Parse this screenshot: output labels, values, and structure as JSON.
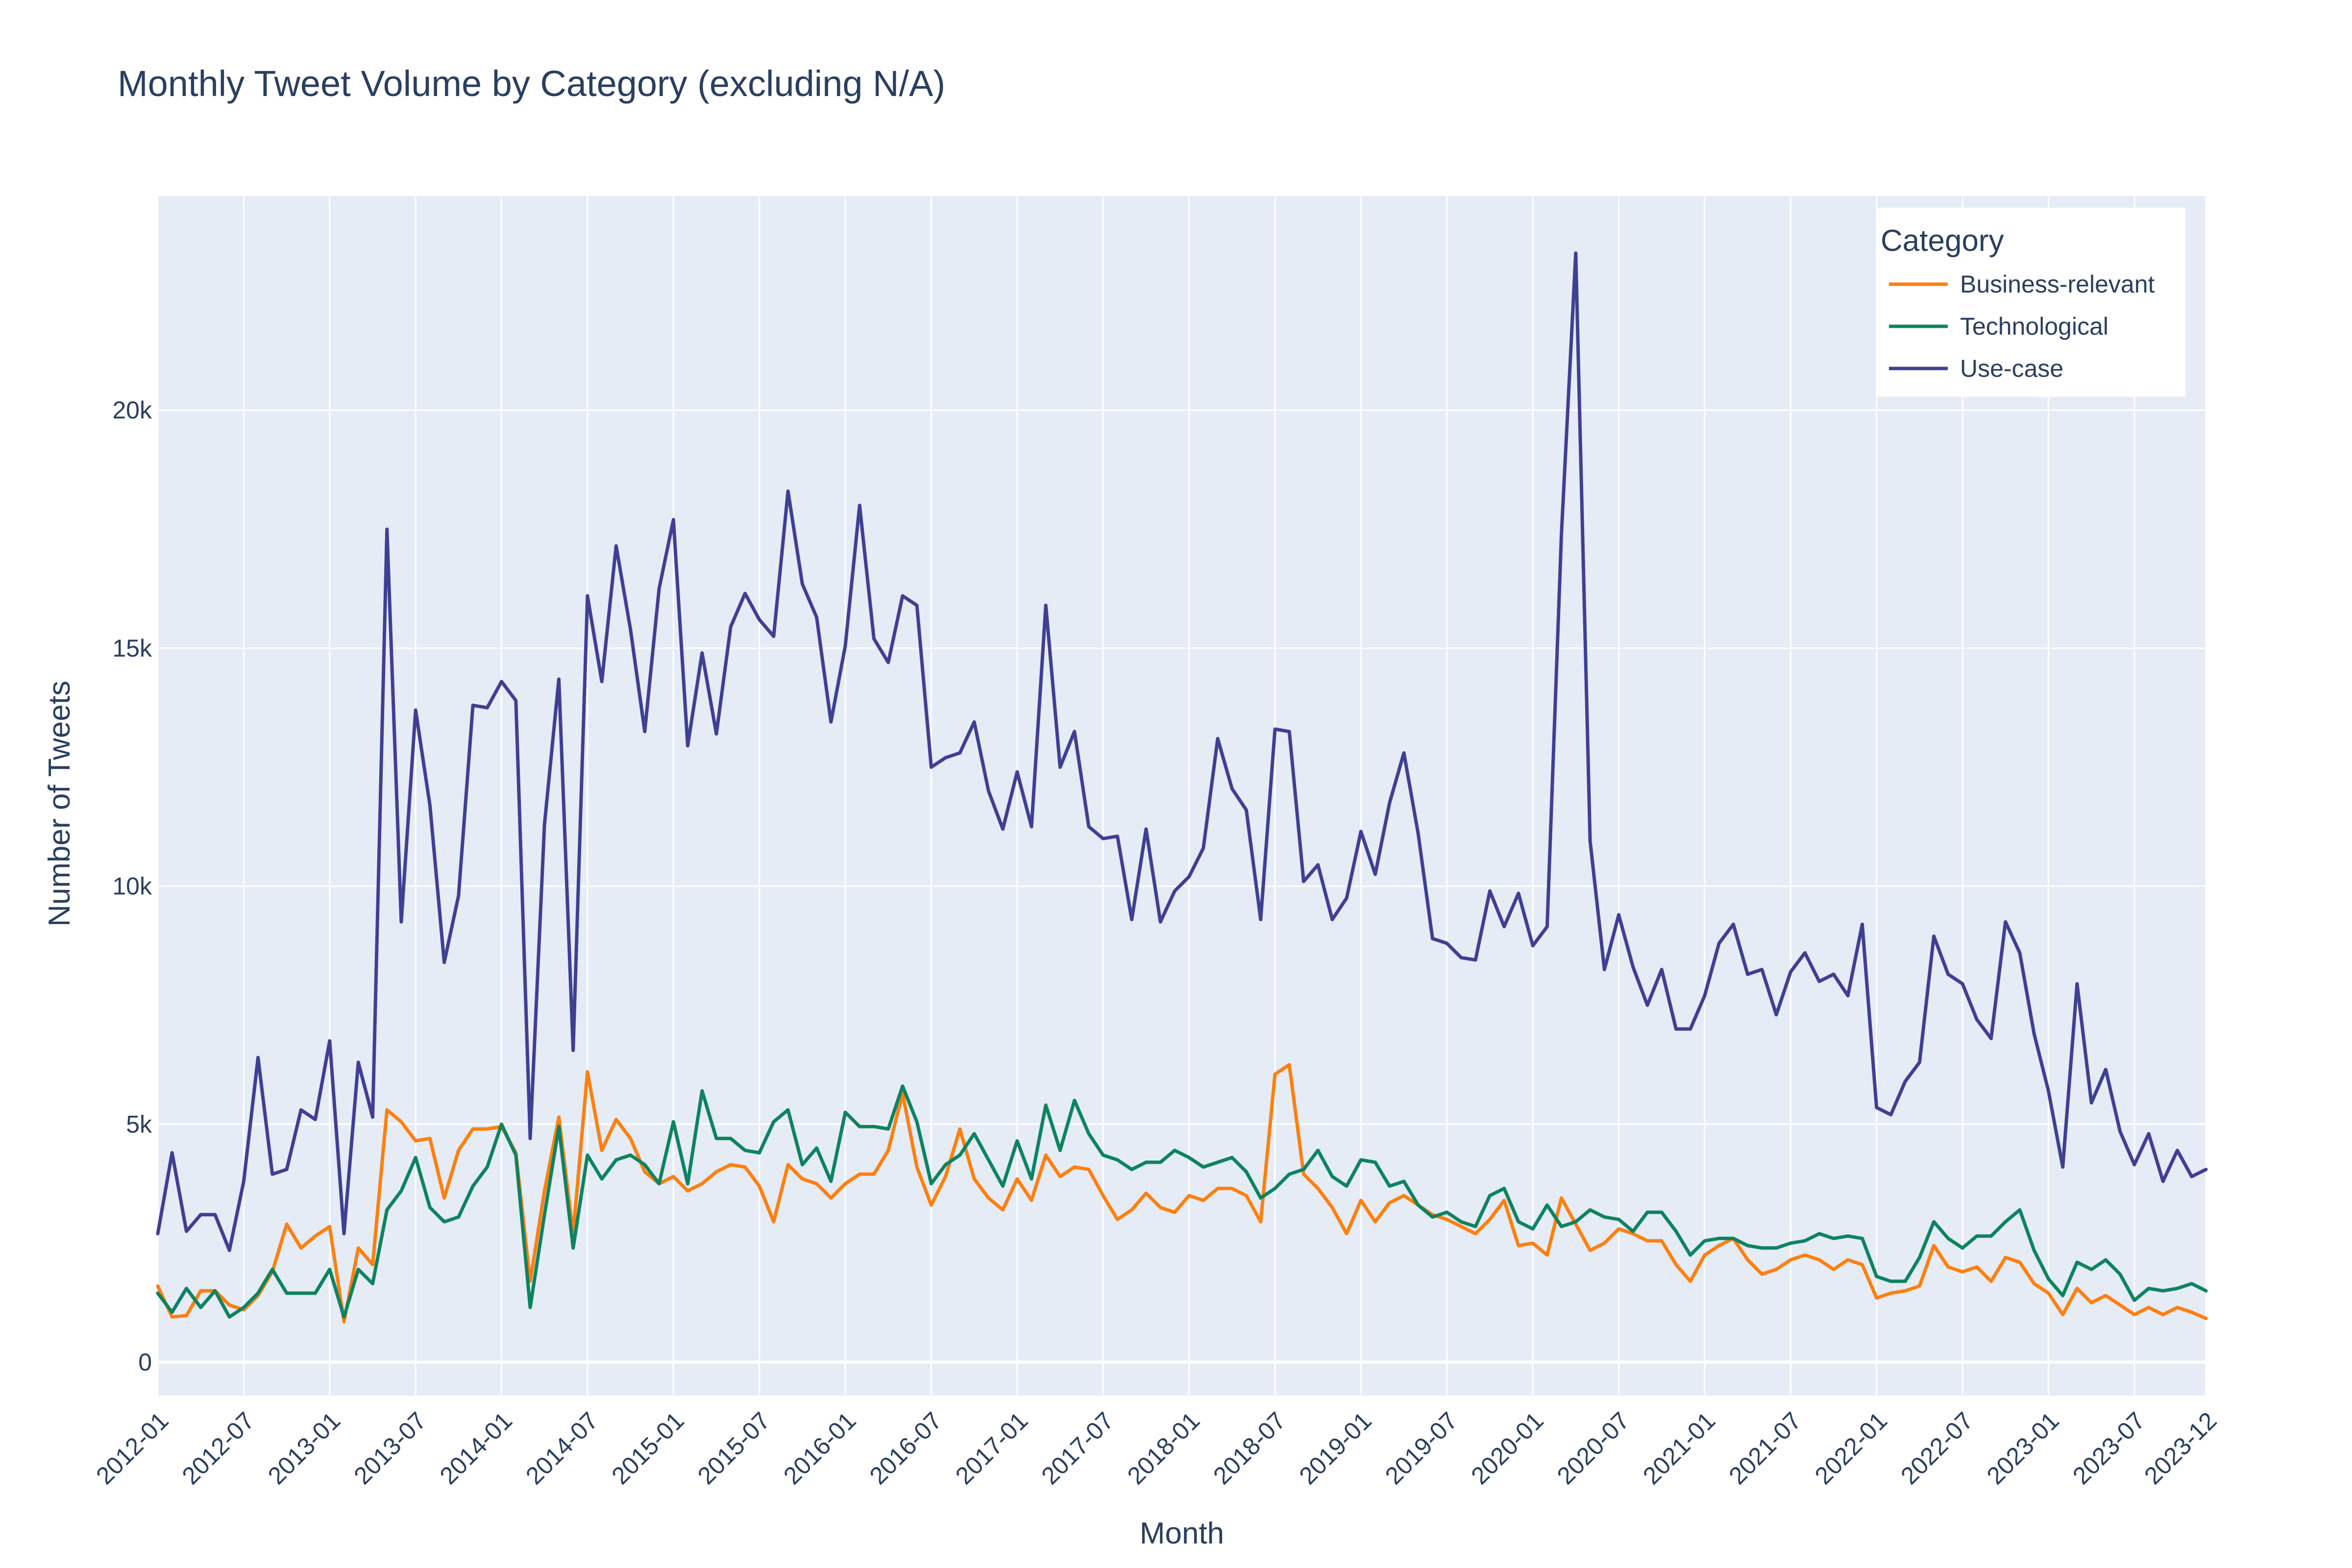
{
  "chart_data": {
    "type": "line",
    "title": "Monthly Tweet Volume by Category (excluding N/A)",
    "xlabel": "Month",
    "ylabel": "Number of Tweets",
    "ylim": [
      -700,
      24500
    ],
    "x_start": "2012-01",
    "x_end": "2023-12",
    "x_tick_labels": [
      "2012-01",
      "2012-07",
      "2013-01",
      "2013-07",
      "2014-01",
      "2014-07",
      "2015-01",
      "2015-07",
      "2016-01",
      "2016-07",
      "2017-01",
      "2017-07",
      "2018-01",
      "2018-07",
      "2019-01",
      "2019-07",
      "2020-01",
      "2020-07",
      "2021-01",
      "2021-07",
      "2022-01",
      "2022-07",
      "2023-01",
      "2023-07",
      "2023-12"
    ],
    "y_ticks": [
      0,
      5000,
      10000,
      15000,
      20000
    ],
    "y_tick_labels": [
      "0",
      "5k",
      "10k",
      "15k",
      "20k"
    ],
    "grid": true,
    "plot_background": "#E5ECF6",
    "legend": {
      "title": "Category",
      "placement": "top-right"
    },
    "series": [
      {
        "name": "Business-relevant",
        "color": "#FF7F0E",
        "values": [
          1600,
          950,
          980,
          1500,
          1500,
          1200,
          1100,
          1400,
          1900,
          2900,
          2400,
          2650,
          2850,
          850,
          2400,
          2050,
          5300,
          5050,
          4650,
          4700,
          3450,
          4450,
          4900,
          4900,
          4950,
          4400,
          1700,
          3600,
          5150,
          2700,
          6100,
          4450,
          5100,
          4700,
          4000,
          3750,
          3900,
          3600,
          3750,
          4000,
          4150,
          4100,
          3700,
          2950,
          4150,
          3850,
          3750,
          3450,
          3750,
          3950,
          3950,
          4450,
          5650,
          4100,
          3300,
          3900,
          4900,
          3850,
          3450,
          3200,
          3850,
          3400,
          4350,
          3900,
          4100,
          4050,
          3500,
          3000,
          3200,
          3550,
          3250,
          3150,
          3500,
          3400,
          3650,
          3650,
          3500,
          2950,
          6050,
          6250,
          3950,
          3650,
          3250,
          2700,
          3400,
          2950,
          3350,
          3500,
          3300,
          3100,
          3000,
          2850,
          2700,
          3000,
          3400,
          2450,
          2500,
          2250,
          3450,
          2900,
          2350,
          2500,
          2800,
          2700,
          2550,
          2550,
          2050,
          1700,
          2250,
          2450,
          2600,
          2150,
          1850,
          1950,
          2150,
          2250,
          2150,
          1950,
          2150,
          2050,
          1350,
          1450,
          1500,
          1600,
          2450,
          2000,
          1900,
          2000,
          1700,
          2200,
          2100,
          1650,
          1450,
          1000,
          1550,
          1250,
          1400,
          1200,
          1000,
          1150,
          1000,
          1150,
          1050,
          920
        ]
      },
      {
        "name": "Technological",
        "color": "#0E8360",
        "values": [
          1450,
          1050,
          1550,
          1150,
          1500,
          950,
          1150,
          1450,
          1950,
          1450,
          1450,
          1450,
          1950,
          950,
          1950,
          1650,
          3200,
          3600,
          4300,
          3250,
          2950,
          3050,
          3700,
          4100,
          5000,
          4350,
          1150,
          3100,
          4950,
          2400,
          4350,
          3850,
          4250,
          4350,
          4150,
          3750,
          5050,
          3750,
          5700,
          4700,
          4700,
          4450,
          4400,
          5050,
          5300,
          4150,
          4500,
          3800,
          5250,
          4950,
          4950,
          4900,
          5800,
          5050,
          3750,
          4150,
          4350,
          4800,
          4250,
          3700,
          4650,
          3850,
          5400,
          4450,
          5500,
          4800,
          4350,
          4250,
          4050,
          4200,
          4200,
          4450,
          4300,
          4100,
          4200,
          4300,
          4000,
          3450,
          3650,
          3950,
          4050,
          4450,
          3900,
          3700,
          4250,
          4200,
          3700,
          3800,
          3300,
          3050,
          3150,
          2950,
          2850,
          3500,
          3650,
          2950,
          2800,
          3300,
          2850,
          2950,
          3200,
          3050,
          3000,
          2750,
          3150,
          3150,
          2750,
          2250,
          2550,
          2600,
          2600,
          2450,
          2400,
          2400,
          2500,
          2550,
          2700,
          2600,
          2650,
          2600,
          1800,
          1700,
          1700,
          2200,
          2950,
          2600,
          2400,
          2650,
          2650,
          2950,
          3200,
          2350,
          1750,
          1400,
          2100,
          1950,
          2150,
          1850,
          1300,
          1550,
          1500,
          1550,
          1650,
          1500
        ]
      },
      {
        "name": "Use-case",
        "color": "#3F3F94",
        "values": [
          2700,
          4400,
          2750,
          3100,
          3100,
          2350,
          3800,
          6400,
          3950,
          4050,
          5300,
          5100,
          6750,
          2700,
          6300,
          5150,
          17500,
          9250,
          13700,
          11700,
          8400,
          9800,
          13800,
          13750,
          14300,
          13900,
          4700,
          11300,
          14350,
          6550,
          16100,
          14300,
          17150,
          15400,
          13250,
          16250,
          17700,
          12950,
          14900,
          13200,
          15450,
          16150,
          15600,
          15250,
          18300,
          16350,
          15650,
          13450,
          15050,
          18000,
          15200,
          14700,
          16100,
          15900,
          12500,
          12700,
          12800,
          13450,
          12000,
          11200,
          12400,
          11250,
          15900,
          12500,
          13250,
          11250,
          11000,
          11050,
          9300,
          11200,
          9250,
          9900,
          10200,
          10800,
          13100,
          12050,
          11600,
          9300,
          13300,
          13250,
          10100,
          10450,
          9300,
          9750,
          11150,
          10250,
          11750,
          12800,
          11100,
          8900,
          8800,
          8500,
          8450,
          9900,
          9150,
          9850,
          8750,
          9150,
          17400,
          23300,
          10950,
          8250,
          9400,
          8300,
          7500,
          8250,
          7000,
          7000,
          7700,
          8800,
          9200,
          8150,
          8250,
          7300,
          8200,
          8600,
          8000,
          8150,
          7700,
          9200,
          5350,
          5200,
          5900,
          6300,
          8950,
          8150,
          7950,
          7200,
          6800,
          9250,
          8600,
          6900,
          5700,
          4100,
          7950,
          5450,
          6150,
          4850,
          4150,
          4800,
          3800,
          4450,
          3900,
          4050
        ]
      }
    ]
  }
}
